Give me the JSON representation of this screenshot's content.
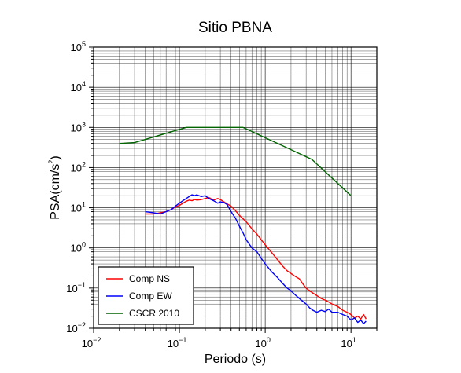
{
  "chart_data": {
    "type": "line",
    "title": "Sitio PBNA",
    "xlabel": "Periodo (s)",
    "ylabel_prefix": "PSA(cm/s",
    "ylabel_exp": "2",
    "ylabel_suffix": ")",
    "x_scale": "log",
    "y_scale": "log",
    "xlim": [
      0.01,
      20
    ],
    "ylim": [
      0.01,
      100000
    ],
    "grid": true,
    "legend_position": "bottom-left",
    "x_ticks": [
      {
        "base": "10",
        "exp": "−2",
        "value": 0.01
      },
      {
        "base": "10",
        "exp": "−1",
        "value": 0.1
      },
      {
        "base": "10",
        "exp": "0",
        "value": 1
      },
      {
        "base": "10",
        "exp": "1",
        "value": 10
      }
    ],
    "y_ticks": [
      {
        "base": "10",
        "exp": "−2",
        "value": 0.01
      },
      {
        "base": "10",
        "exp": "−1",
        "value": 0.1
      },
      {
        "base": "10",
        "exp": "0",
        "value": 1
      },
      {
        "base": "10",
        "exp": "1",
        "value": 10
      },
      {
        "base": "10",
        "exp": "2",
        "value": 100
      },
      {
        "base": "10",
        "exp": "3",
        "value": 1000
      },
      {
        "base": "10",
        "exp": "4",
        "value": 10000
      },
      {
        "base": "10",
        "exp": "5",
        "value": 100000
      }
    ],
    "series": [
      {
        "name": "Comp NS",
        "color": "#ff0000",
        "x": [
          0.04,
          0.05,
          0.06,
          0.07,
          0.08,
          0.09,
          0.1,
          0.11,
          0.12,
          0.13,
          0.14,
          0.15,
          0.16,
          0.18,
          0.2,
          0.22,
          0.25,
          0.28,
          0.3,
          0.33,
          0.36,
          0.4,
          0.45,
          0.5,
          0.6,
          0.7,
          0.8,
          0.9,
          1.0,
          1.2,
          1.4,
          1.6,
          1.8,
          2.0,
          2.2,
          2.5,
          2.8,
          3.0,
          3.3,
          3.6,
          4.0,
          4.5,
          5.0,
          5.5,
          6.0,
          7.0,
          8.0,
          9.0,
          10,
          11,
          12,
          13,
          14,
          15
        ],
        "y": [
          7.0,
          7.0,
          7.5,
          8.0,
          9.0,
          10.5,
          11.5,
          13.0,
          14.5,
          15.5,
          15.0,
          16.0,
          15.5,
          16.0,
          17.0,
          18.0,
          15.5,
          17.0,
          16.0,
          14.0,
          12.5,
          11.0,
          8.5,
          6.5,
          4.5,
          3.0,
          2.2,
          1.6,
          1.2,
          0.75,
          0.5,
          0.35,
          0.27,
          0.23,
          0.2,
          0.17,
          0.12,
          0.1,
          0.085,
          0.075,
          0.065,
          0.055,
          0.05,
          0.045,
          0.04,
          0.035,
          0.028,
          0.025,
          0.022,
          0.018,
          0.02,
          0.017,
          0.022,
          0.017
        ]
      },
      {
        "name": "Comp EW",
        "color": "#0000ff",
        "x": [
          0.04,
          0.05,
          0.06,
          0.07,
          0.08,
          0.09,
          0.1,
          0.11,
          0.12,
          0.13,
          0.14,
          0.15,
          0.16,
          0.18,
          0.2,
          0.22,
          0.25,
          0.28,
          0.3,
          0.33,
          0.36,
          0.4,
          0.45,
          0.5,
          0.55,
          0.6,
          0.7,
          0.8,
          0.9,
          1.0,
          1.2,
          1.4,
          1.6,
          1.8,
          2.0,
          2.2,
          2.5,
          2.8,
          3.0,
          3.3,
          3.6,
          4.0,
          4.5,
          5.0,
          5.5,
          6.0,
          7.0,
          8.0,
          9.0,
          10,
          11,
          12,
          13,
          14,
          15
        ],
        "y": [
          8.0,
          7.5,
          7.0,
          8.0,
          9.0,
          11.0,
          13.0,
          15.0,
          17.0,
          19.0,
          21.0,
          20.0,
          21.0,
          19.0,
          20.0,
          17.0,
          15.0,
          13.0,
          14.0,
          13.5,
          12.0,
          8.0,
          5.5,
          3.5,
          2.4,
          1.6,
          1.0,
          0.8,
          0.55,
          0.4,
          0.25,
          0.18,
          0.13,
          0.1,
          0.085,
          0.07,
          0.055,
          0.045,
          0.04,
          0.032,
          0.028,
          0.025,
          0.028,
          0.026,
          0.03,
          0.025,
          0.025,
          0.022,
          0.02,
          0.016,
          0.018,
          0.014,
          0.016,
          0.013,
          0.015
        ]
      },
      {
        "name": "CSCR 2010",
        "color": "#006400",
        "x": [
          0.02,
          0.03,
          0.12,
          0.55,
          3.5,
          10
        ],
        "y": [
          400,
          420,
          1000,
          1000,
          160,
          20
        ]
      }
    ]
  }
}
